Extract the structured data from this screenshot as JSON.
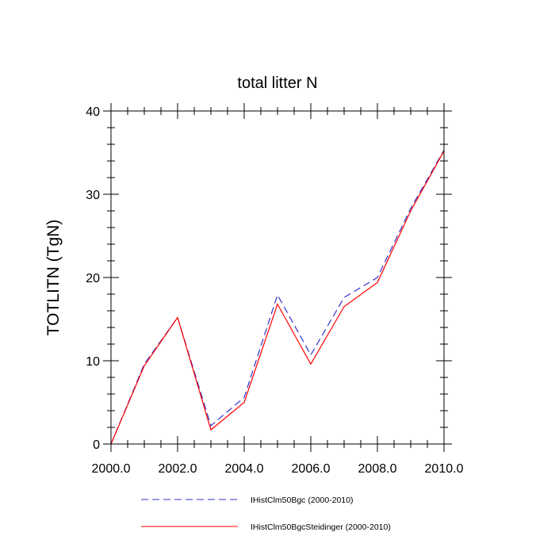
{
  "chart_data": {
    "type": "line",
    "title": "total litter N",
    "xlabel": "",
    "ylabel": "TOTLITN  (TgN)",
    "xlim": [
      2000,
      2010
    ],
    "ylim": [
      0,
      40
    ],
    "x": [
      2000,
      2001,
      2002,
      2003,
      2004,
      2005,
      2006,
      2007,
      2008,
      2009,
      2010
    ],
    "xticks": [
      2000,
      2002,
      2004,
      2006,
      2008,
      2010
    ],
    "xtick_labels": [
      "2000.0",
      "2002.0",
      "2004.0",
      "2006.0",
      "2008.0",
      "2010.0"
    ],
    "yticks": [
      0,
      10,
      20,
      30,
      40
    ],
    "ytick_labels": [
      "0",
      "10",
      "20",
      "30",
      "40"
    ],
    "grid": false,
    "legend_position": "bottom",
    "series": [
      {
        "name": "IHistClm50Bgc (2000-2010)",
        "color": "#3333cc",
        "dash": "dashed",
        "values": [
          0.0,
          9.6,
          15.2,
          2.2,
          5.6,
          17.9,
          10.7,
          17.6,
          20.0,
          28.3,
          35.3
        ]
      },
      {
        "name": "IHistClm50BgcSteidinger (2000-2010)",
        "color": "#ff0000",
        "dash": "solid",
        "values": [
          0.0,
          9.4,
          15.2,
          1.7,
          5.0,
          16.8,
          9.6,
          16.5,
          19.4,
          28.0,
          35.2
        ]
      }
    ]
  }
}
